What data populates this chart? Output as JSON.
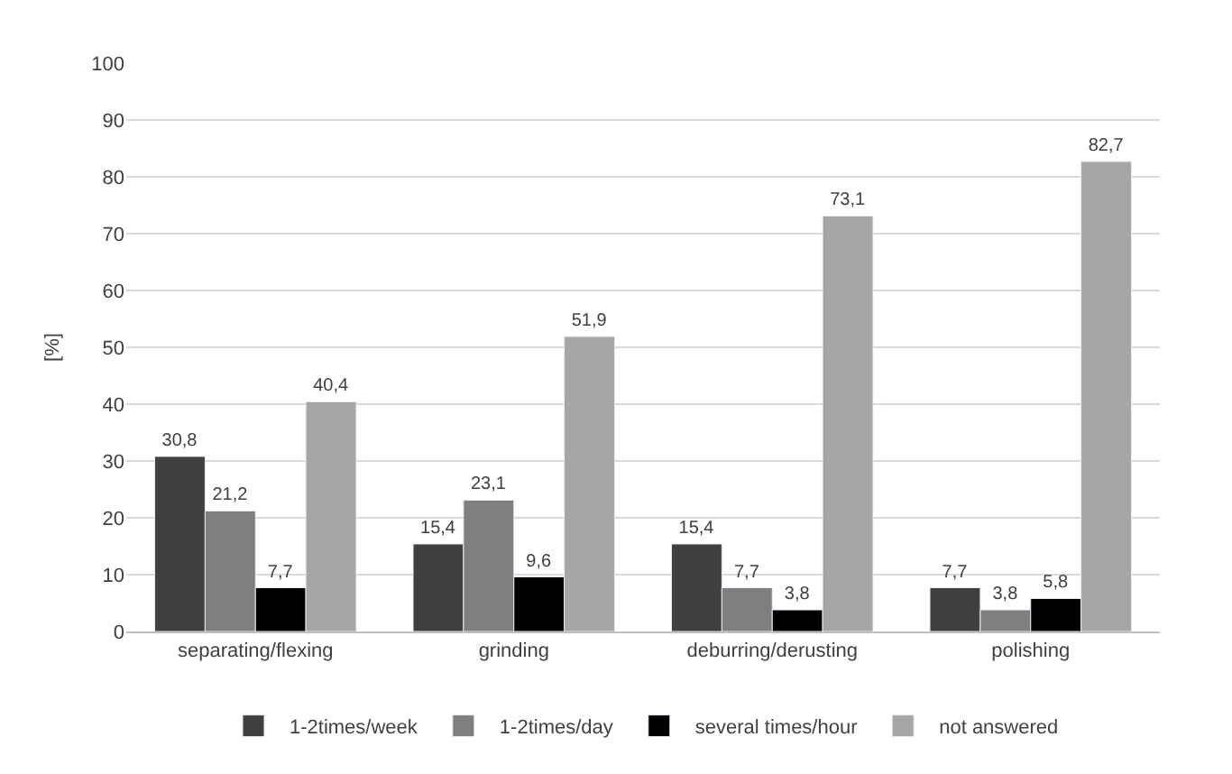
{
  "chart_data": {
    "type": "bar",
    "ylabel": "[%]",
    "categories": [
      "separating/flexing",
      "grinding",
      "deburring/derusting",
      "polishing"
    ],
    "series": [
      {
        "name": "1-2times/week",
        "color": "#404040",
        "values": [
          30.8,
          15.4,
          15.4,
          7.7
        ],
        "value_labels": [
          "30,8",
          "15,4",
          "15,4",
          "7,7"
        ]
      },
      {
        "name": "1-2times/day",
        "color": "#7f7f7f",
        "values": [
          21.2,
          23.1,
          7.7,
          3.8
        ],
        "value_labels": [
          "21,2",
          "23,1",
          "7,7",
          "3,8"
        ]
      },
      {
        "name": "several times/hour",
        "color": "#000000",
        "values": [
          7.7,
          9.6,
          3.8,
          5.8
        ],
        "value_labels": [
          "7,7",
          "9,6",
          "3,8",
          "5,8"
        ]
      },
      {
        "name": "not answered",
        "color": "#a6a6a6",
        "values": [
          40.4,
          51.9,
          73.1,
          82.7
        ],
        "value_labels": [
          "40,4",
          "51,9",
          "73,1",
          "82,7"
        ]
      }
    ],
    "ylim": [
      0,
      100
    ],
    "yticks": [
      0,
      10,
      20,
      30,
      40,
      50,
      60,
      70,
      80,
      90,
      100
    ],
    "grid": "y",
    "legend": "bottom"
  }
}
